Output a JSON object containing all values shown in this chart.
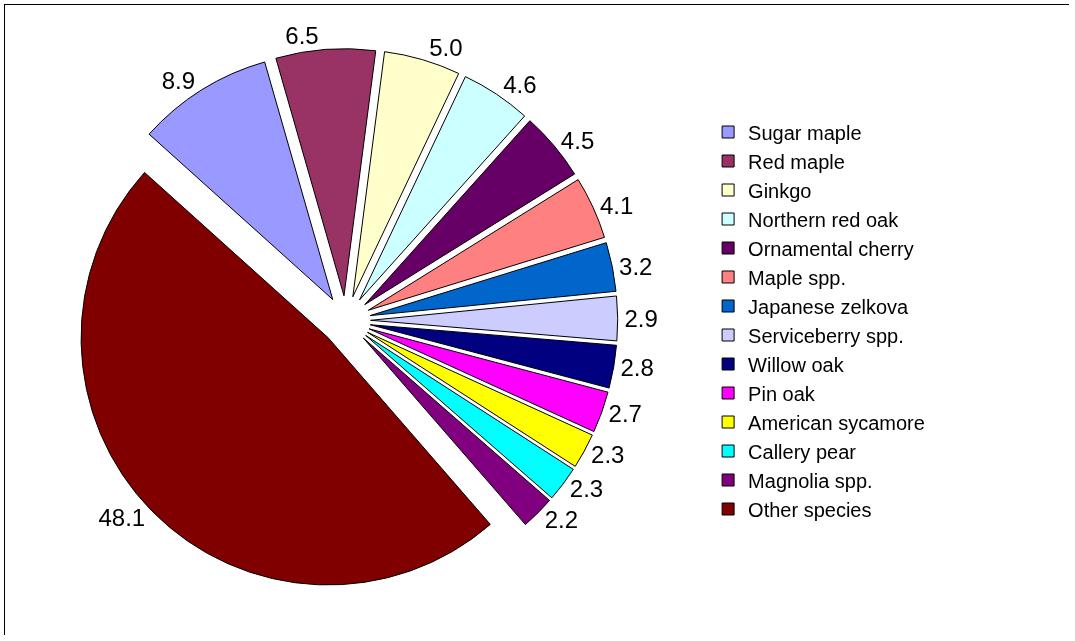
{
  "chart_data": {
    "type": "pie",
    "categories": [
      "Sugar maple",
      "Red maple",
      "Ginkgo",
      "Northern red oak",
      "Ornamental cherry",
      "Maple spp.",
      "Japanese zelkova",
      "Serviceberry spp.",
      "Willow oak",
      "Pin oak",
      "American sycamore",
      "Callery pear",
      "Magnolia spp.",
      "Other species"
    ],
    "values": [
      8.9,
      6.5,
      5.0,
      4.6,
      4.5,
      4.1,
      3.2,
      2.9,
      2.8,
      2.7,
      2.3,
      2.3,
      2.2,
      48.1
    ],
    "colors": [
      "#9999ff",
      "#993366",
      "#ffffcc",
      "#ccffff",
      "#660066",
      "#ff8080",
      "#0066cc",
      "#ccccff",
      "#000080",
      "#ff00ff",
      "#ffff00",
      "#00ffff",
      "#800080",
      "#800000"
    ],
    "value_labels": [
      "8.9",
      "6.5",
      "5.0",
      "4.6",
      "4.5",
      "4.1",
      "3.2",
      "2.9",
      "2.8",
      "2.7",
      "2.3",
      "2.3",
      "2.2",
      "48.1"
    ],
    "legend": "right"
  }
}
